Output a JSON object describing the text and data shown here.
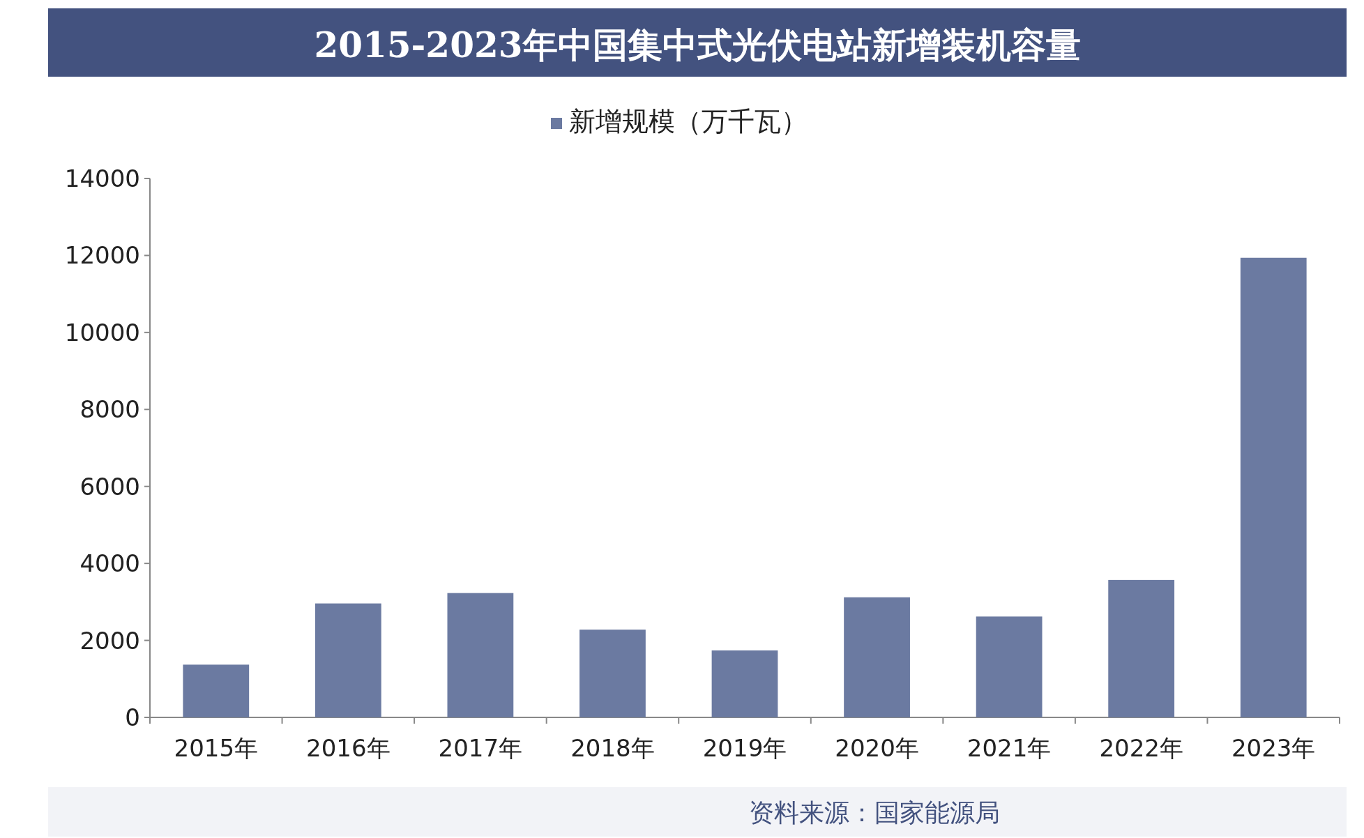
{
  "chart_data": {
    "type": "bar",
    "title": "2015-2023年中国集中式光伏电站新增装机容量",
    "categories": [
      "2015年",
      "2016年",
      "2017年",
      "2018年",
      "2019年",
      "2020年",
      "2021年",
      "2022年",
      "2023年"
    ],
    "series": [
      {
        "name": "新增规模（万千瓦）",
        "color": "#6b7aa1",
        "values": [
          1370,
          2960,
          3230,
          2280,
          1740,
          3120,
          2620,
          3570,
          11940
        ]
      }
    ],
    "ylim": [
      0,
      14000
    ],
    "yticks": [
      0,
      2000,
      4000,
      6000,
      8000,
      10000,
      12000,
      14000
    ],
    "grid": false,
    "legend": "top",
    "annotations": [
      "资料来源：国家能源局"
    ]
  }
}
